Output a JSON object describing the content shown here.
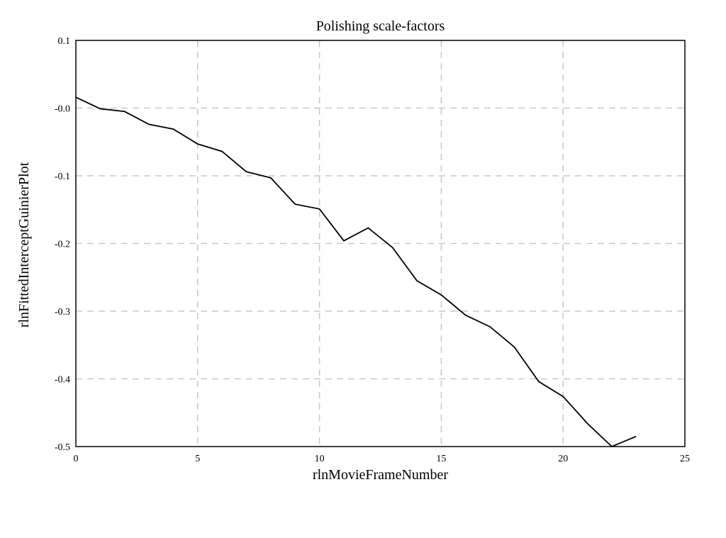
{
  "chart_data": {
    "type": "line",
    "title": "Polishing scale-factors",
    "xlabel": "rlnMovieFrameNumber",
    "ylabel": "rlnFittedInterceptGuinierPlot",
    "xlim": [
      0,
      25
    ],
    "ylim": [
      -0.5,
      0.1
    ],
    "x_ticks": [
      0,
      5,
      10,
      15,
      20,
      25
    ],
    "x_tick_labels": [
      "0",
      "5",
      "10",
      "15",
      "20",
      "25"
    ],
    "y_ticks": [
      0.1,
      0.0,
      -0.1,
      -0.2,
      -0.3,
      -0.4,
      -0.5
    ],
    "y_tick_labels": [
      "0.1",
      "-0.0",
      "-0.1",
      "-0.2",
      "-0.3",
      "-0.4",
      "-0.5"
    ],
    "grid": true,
    "series": [
      {
        "color": "#000000",
        "x": [
          0,
          1,
          2,
          3,
          4,
          5,
          6,
          7,
          8,
          9,
          10,
          11,
          12,
          13,
          14,
          15,
          16,
          17,
          18,
          19,
          20,
          21,
          22,
          23
        ],
        "y": [
          0.016,
          -0.001,
          -0.005,
          -0.024,
          -0.031,
          -0.053,
          -0.064,
          -0.094,
          -0.103,
          -0.142,
          -0.149,
          -0.196,
          -0.177,
          -0.206,
          -0.255,
          -0.276,
          -0.306,
          -0.323,
          -0.353,
          -0.404,
          -0.426,
          -0.466,
          -0.5,
          -0.485
        ]
      }
    ]
  }
}
